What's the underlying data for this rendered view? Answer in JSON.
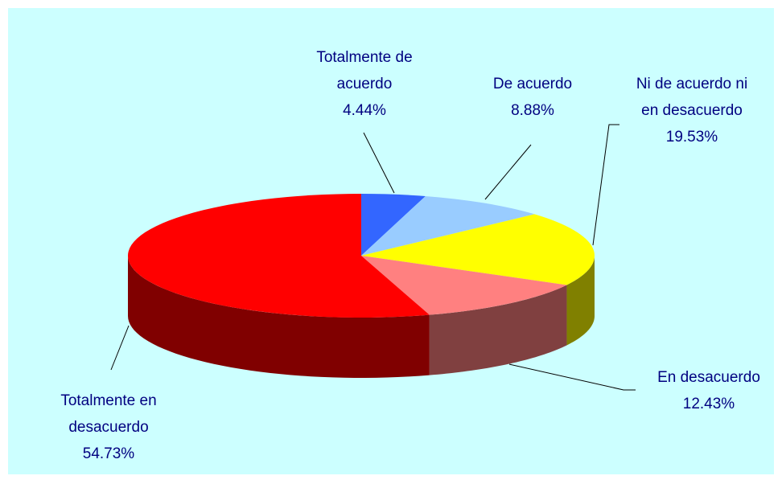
{
  "chart_data": {
    "type": "pie3d",
    "categories": [
      "Totalmente de acuerdo",
      "De acuerdo",
      "Ni de acuerdo ni en desacuerdo",
      "En desacuerdo",
      "Totalmente en desacuerdo"
    ],
    "values": [
      4.44,
      8.88,
      19.53,
      12.43,
      54.73
    ],
    "value_labels": [
      "4.44%",
      "8.88%",
      "19.53%",
      "12.43%",
      "54.73%"
    ],
    "colors": [
      "#3366ff",
      "#99ccff",
      "#ffff00",
      "#ff8080",
      "#ff0000"
    ]
  }
}
